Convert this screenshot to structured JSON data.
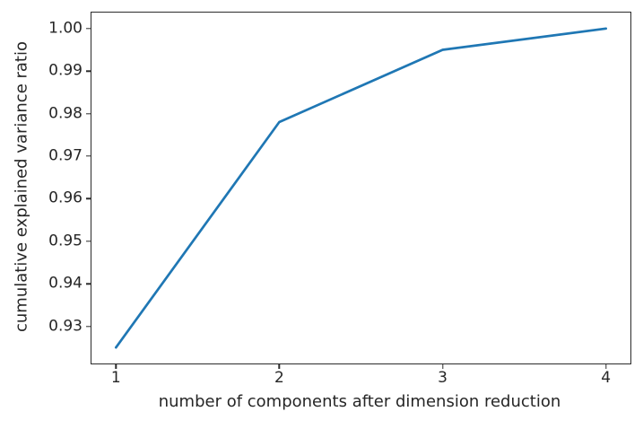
{
  "chart_data": {
    "type": "line",
    "title": "",
    "xlabel": "number of components after dimension reduction",
    "ylabel": "cumulative explained variance ratio",
    "x": [
      1,
      2,
      3,
      4
    ],
    "y": [
      0.925,
      0.978,
      0.995,
      1.0
    ],
    "xtick_labels": [
      "1",
      "2",
      "3",
      "4"
    ],
    "ytick_labels": [
      "0.93",
      "0.94",
      "0.95",
      "0.96",
      "0.97",
      "0.98",
      "0.99",
      "1.00"
    ],
    "xlim": [
      0.85,
      4.15
    ],
    "ylim": [
      0.92125,
      1.00375
    ],
    "grid": false,
    "legend": null,
    "line_color": "#1f77b4",
    "spine_color": "#2b2b2b",
    "text_color": "#262626"
  }
}
